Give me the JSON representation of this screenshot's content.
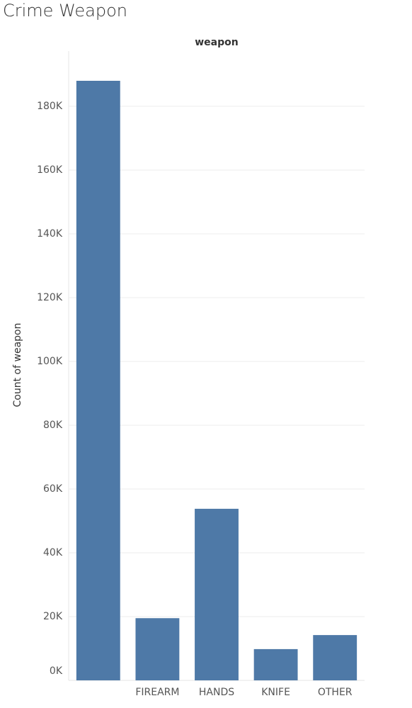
{
  "chart_data": {
    "type": "bar",
    "title": "Crime Weapon",
    "header": "weapon",
    "y_label": "Count of weapon",
    "categories": [
      null,
      "FIREARM",
      "HANDS",
      "KNIFE",
      "OTHER"
    ],
    "values": [
      188000,
      19500,
      53800,
      9800,
      14200
    ],
    "color": "#4e79a7",
    "ylim": [
      0,
      198000
    ],
    "yticks": [
      {
        "value": 0,
        "label": "0K"
      },
      {
        "value": 20000,
        "label": "20K"
      },
      {
        "value": 40000,
        "label": "40K"
      },
      {
        "value": 60000,
        "label": "60K"
      },
      {
        "value": 80000,
        "label": "80K"
      },
      {
        "value": 100000,
        "label": "100K"
      },
      {
        "value": 120000,
        "label": "120K"
      },
      {
        "value": 140000,
        "label": "140K"
      },
      {
        "value": 160000,
        "label": "160K"
      },
      {
        "value": 180000,
        "label": "180K"
      }
    ],
    "grid": true
  }
}
